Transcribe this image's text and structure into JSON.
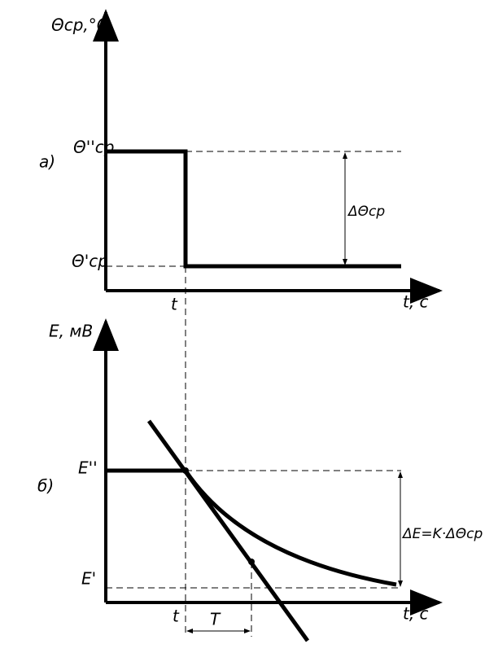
{
  "panels": [
    {
      "label": "а)",
      "y_axis": "Θср,°C",
      "x_axis": "t, c",
      "levels": [
        "Θ''ср",
        "Θ'ср"
      ],
      "time": "t",
      "delta": "ΔΘср"
    },
    {
      "label": "б)",
      "y_axis": "E, мВ",
      "x_axis": "t, c",
      "levels": [
        "E''",
        "E'"
      ],
      "time": "t",
      "delta": "ΔE=K·ΔΘср",
      "constant": "T"
    }
  ]
}
